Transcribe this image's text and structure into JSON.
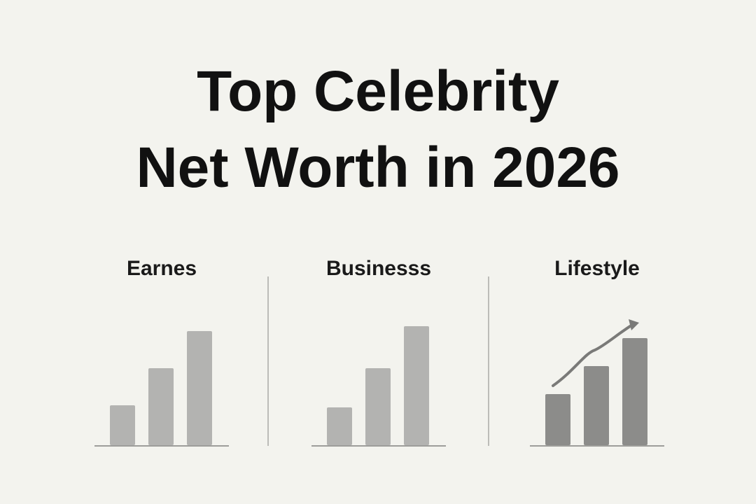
{
  "title": [
    "Top Celebrity",
    "Net Worth in 2026"
  ],
  "chart_data": [
    {
      "type": "bar",
      "title": "Earnes",
      "categories": [
        null,
        null,
        null
      ],
      "values": [
        57,
        110,
        163
      ],
      "color": "#b3b3b1",
      "ylim": [
        0,
        180
      ]
    },
    {
      "type": "bar",
      "title": "Businesss",
      "categories": [
        null,
        null,
        null
      ],
      "values": [
        54,
        110,
        170
      ],
      "color": "#b3b3b1",
      "ylim": [
        0,
        180
      ]
    },
    {
      "type": "bar",
      "title": "Lifestyle",
      "categories": [
        null,
        null,
        null
      ],
      "values": [
        73,
        113,
        153
      ],
      "color": "#8c8c8a",
      "ylim": [
        0,
        180
      ]
    }
  ]
}
